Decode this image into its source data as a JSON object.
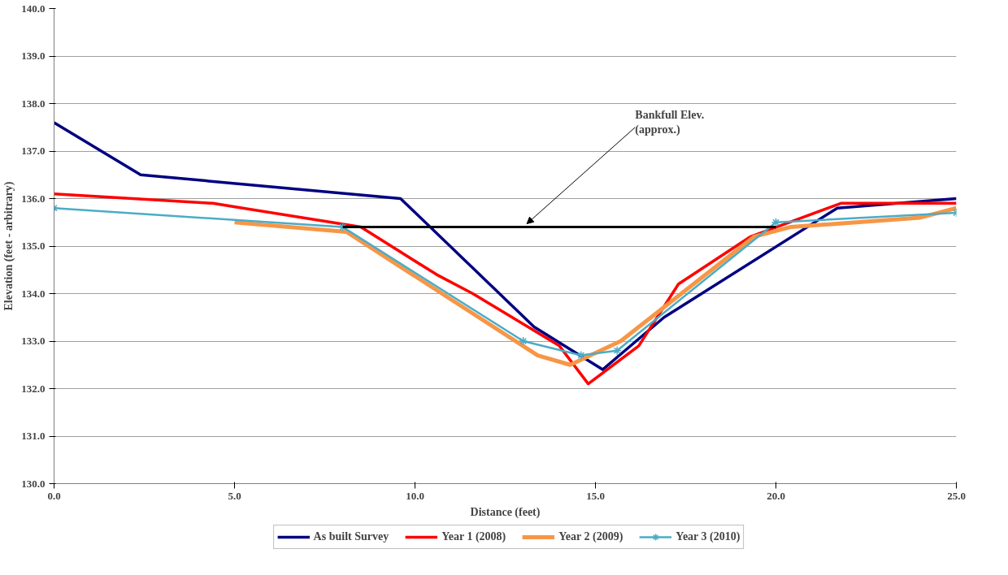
{
  "chart_data": {
    "type": "line",
    "xlabel": "Distance (feet)",
    "ylabel": "Elevation (feet - arbitrary)",
    "xlim": [
      0,
      25
    ],
    "ylim": [
      130,
      140
    ],
    "xticks": [
      {
        "value": 0,
        "label": "0.0"
      },
      {
        "value": 5,
        "label": "5.0"
      },
      {
        "value": 10,
        "label": "10.0"
      },
      {
        "value": 15,
        "label": "15.0"
      },
      {
        "value": 20,
        "label": "20.0"
      },
      {
        "value": 25,
        "label": "25.0"
      }
    ],
    "yticks": [
      {
        "value": 130,
        "label": "130.0"
      },
      {
        "value": 131,
        "label": "131.0"
      },
      {
        "value": 132,
        "label": "132.0"
      },
      {
        "value": 133,
        "label": "133.0"
      },
      {
        "value": 134,
        "label": "134.0"
      },
      {
        "value": 135,
        "label": "135.0"
      },
      {
        "value": 136,
        "label": "136.0"
      },
      {
        "value": 137,
        "label": "137.0"
      },
      {
        "value": 138,
        "label": "138.0"
      },
      {
        "value": 139,
        "label": "139.0"
      },
      {
        "value": 140,
        "label": "140.0"
      }
    ],
    "grid": "y",
    "legend": "bottom",
    "marker": "none",
    "line_style": "solid",
    "series": [
      {
        "name": "As built Survey",
        "color": "#000080",
        "x": [
          0,
          2.4,
          9.6,
          13.3,
          15.2,
          16.9,
          21.7,
          25
        ],
        "values": [
          137.6,
          136.5,
          136.0,
          133.3,
          132.4,
          133.5,
          135.8,
          136.0
        ]
      },
      {
        "name": "Year 1 (2008)",
        "color": "#ff0000",
        "x": [
          0,
          4.4,
          8.5,
          10.6,
          11.6,
          14.0,
          14.8,
          16.2,
          17.3,
          19.3,
          21.8,
          25
        ],
        "values": [
          136.1,
          135.9,
          135.4,
          134.4,
          134.0,
          132.9,
          132.1,
          132.9,
          134.2,
          135.2,
          135.9,
          135.9
        ]
      },
      {
        "name": "Year 2 (2009)",
        "color": "#f79646",
        "x": [
          5.0,
          8.1,
          13.4,
          14.3,
          15.7,
          19.4,
          20.4,
          24.0,
          25
        ],
        "values": [
          135.5,
          135.3,
          132.7,
          132.5,
          133.0,
          135.2,
          135.4,
          135.6,
          135.8
        ]
      },
      {
        "name": "Year 3 (2010)",
        "color": "#4bacc6",
        "marker": "cross",
        "x": [
          0,
          8.0,
          13.0,
          14.6,
          15.6,
          20.0,
          25
        ],
        "values": [
          135.8,
          135.4,
          133.0,
          132.7,
          132.8,
          135.5,
          135.7
        ]
      },
      {
        "color": "#000000",
        "x": [
          8.0,
          20.0
        ],
        "values": [
          135.4,
          135.4
        ]
      }
    ],
    "annotations": [
      {
        "text": "Bankfull Elev.\n(approx.)",
        "x": 13.1,
        "y": 135.4
      }
    ]
  }
}
